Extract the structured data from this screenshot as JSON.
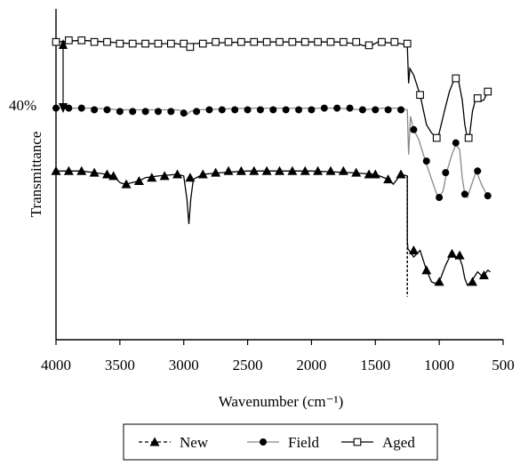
{
  "chart_data": {
    "type": "line",
    "title": "",
    "xlabel": "Wavenumber (cm⁻¹)",
    "ylabel": "Transmittance",
    "xlim": [
      4000,
      500
    ],
    "x_ticks": [
      "4000",
      "3500",
      "3000",
      "2500",
      "2000",
      "1500",
      "1000",
      "500"
    ],
    "y_ticks": [],
    "grid": false,
    "legend_position": "bottom",
    "scale_annotation": "40%",
    "series": [
      {
        "name": "New",
        "line_style": "dashed",
        "marker": "triangle",
        "color": "#000000",
        "line_points": [
          [
            4000,
            1.02
          ],
          [
            3800,
            1.02
          ],
          [
            3700,
            1.01
          ],
          [
            3600,
            1.0
          ],
          [
            3550,
            0.99
          ],
          [
            3500,
            0.95
          ],
          [
            3460,
            0.94
          ],
          [
            3400,
            0.95
          ],
          [
            3350,
            0.96
          ],
          [
            3300,
            0.98
          ],
          [
            3200,
            0.99
          ],
          [
            3050,
            1.0
          ],
          [
            3000,
            0.99
          ],
          [
            2975,
            0.85
          ],
          [
            2960,
            0.7
          ],
          [
            2945,
            0.85
          ],
          [
            2925,
            0.97
          ],
          [
            2900,
            0.98
          ],
          [
            2850,
            1.0
          ],
          [
            2700,
            1.01
          ],
          [
            2500,
            1.02
          ],
          [
            2000,
            1.02
          ],
          [
            1700,
            1.01
          ],
          [
            1500,
            1.0
          ],
          [
            1400,
            0.97
          ],
          [
            1360,
            0.94
          ],
          [
            1330,
            0.97
          ],
          [
            1300,
            1.0
          ],
          [
            1250,
            0.99
          ],
          [
            1250,
            0.6
          ],
          [
            1245,
            0.55
          ],
          [
            1200,
            0.5
          ],
          [
            1150,
            0.54
          ],
          [
            1100,
            0.42
          ],
          [
            1060,
            0.35
          ],
          [
            1030,
            0.34
          ],
          [
            990,
            0.37
          ],
          [
            950,
            0.45
          ],
          [
            900,
            0.53
          ],
          [
            870,
            0.49
          ],
          [
            850,
            0.51
          ],
          [
            820,
            0.45
          ],
          [
            800,
            0.37
          ],
          [
            780,
            0.33
          ],
          [
            750,
            0.35
          ],
          [
            700,
            0.41
          ],
          [
            660,
            0.38
          ],
          [
            620,
            0.42
          ],
          [
            600,
            0.41
          ]
        ],
        "marker_points": [
          [
            4000,
            1.02
          ],
          [
            3900,
            1.02
          ],
          [
            3800,
            1.02
          ],
          [
            3700,
            1.01
          ],
          [
            3600,
            1.0
          ],
          [
            3550,
            0.99
          ],
          [
            3450,
            0.94
          ],
          [
            3350,
            0.96
          ],
          [
            3250,
            0.98
          ],
          [
            3150,
            0.99
          ],
          [
            3050,
            1.0
          ],
          [
            2950,
            0.98
          ],
          [
            2850,
            1.0
          ],
          [
            2750,
            1.01
          ],
          [
            2650,
            1.02
          ],
          [
            2550,
            1.02
          ],
          [
            2450,
            1.02
          ],
          [
            2350,
            1.02
          ],
          [
            2250,
            1.02
          ],
          [
            2150,
            1.02
          ],
          [
            2050,
            1.02
          ],
          [
            1950,
            1.02
          ],
          [
            1850,
            1.02
          ],
          [
            1750,
            1.02
          ],
          [
            1650,
            1.01
          ],
          [
            1550,
            1.0
          ],
          [
            1500,
            1.0
          ],
          [
            1400,
            0.97
          ],
          [
            1300,
            1.0
          ],
          [
            1200,
            0.54
          ],
          [
            1100,
            0.42
          ],
          [
            1000,
            0.35
          ],
          [
            900,
            0.52
          ],
          [
            840,
            0.51
          ],
          [
            740,
            0.35
          ],
          [
            650,
            0.39
          ]
        ]
      },
      {
        "name": "Field",
        "line_style": "solid",
        "marker": "circle",
        "color": "#000000",
        "line_color": "#888888",
        "line_points": [
          [
            4000,
            1.4
          ],
          [
            3700,
            1.4
          ],
          [
            3500,
            1.39
          ],
          [
            3300,
            1.39
          ],
          [
            3050,
            1.39
          ],
          [
            3000,
            1.38
          ],
          [
            2975,
            1.36
          ],
          [
            2950,
            1.38
          ],
          [
            2900,
            1.39
          ],
          [
            2500,
            1.4
          ],
          [
            1800,
            1.4
          ],
          [
            1600,
            1.39
          ],
          [
            1450,
            1.4
          ],
          [
            1300,
            1.4
          ],
          [
            1250,
            1.39
          ],
          [
            1240,
            1.12
          ],
          [
            1225,
            1.35
          ],
          [
            1200,
            1.27
          ],
          [
            1160,
            1.21
          ],
          [
            1100,
            1.06
          ],
          [
            1060,
            0.97
          ],
          [
            1020,
            0.88
          ],
          [
            1000,
            0.86
          ],
          [
            970,
            0.9
          ],
          [
            940,
            1.02
          ],
          [
            900,
            1.12
          ],
          [
            870,
            1.18
          ],
          [
            840,
            1.15
          ],
          [
            820,
            0.98
          ],
          [
            800,
            0.88
          ],
          [
            780,
            0.86
          ],
          [
            750,
            0.93
          ],
          [
            710,
            1.02
          ],
          [
            670,
            0.94
          ],
          [
            630,
            0.88
          ],
          [
            600,
            0.87
          ]
        ],
        "marker_points": [
          [
            4000,
            1.4
          ],
          [
            3900,
            1.4
          ],
          [
            3800,
            1.4
          ],
          [
            3700,
            1.39
          ],
          [
            3600,
            1.39
          ],
          [
            3500,
            1.38
          ],
          [
            3400,
            1.38
          ],
          [
            3300,
            1.38
          ],
          [
            3200,
            1.38
          ],
          [
            3100,
            1.38
          ],
          [
            3000,
            1.37
          ],
          [
            2900,
            1.38
          ],
          [
            2800,
            1.39
          ],
          [
            2700,
            1.39
          ],
          [
            2600,
            1.39
          ],
          [
            2500,
            1.39
          ],
          [
            2400,
            1.39
          ],
          [
            2300,
            1.39
          ],
          [
            2200,
            1.39
          ],
          [
            2100,
            1.39
          ],
          [
            2000,
            1.39
          ],
          [
            1900,
            1.4
          ],
          [
            1800,
            1.4
          ],
          [
            1700,
            1.4
          ],
          [
            1600,
            1.39
          ],
          [
            1500,
            1.39
          ],
          [
            1400,
            1.39
          ],
          [
            1300,
            1.39
          ],
          [
            1200,
            1.27
          ],
          [
            1100,
            1.08
          ],
          [
            1000,
            0.86
          ],
          [
            950,
            1.01
          ],
          [
            870,
            1.19
          ],
          [
            800,
            0.88
          ],
          [
            700,
            1.02
          ],
          [
            620,
            0.87
          ]
        ]
      },
      {
        "name": "Aged",
        "line_style": "solid",
        "marker": "square-open",
        "color": "#000000",
        "line_points": [
          [
            4000,
            1.8
          ],
          [
            3800,
            1.81
          ],
          [
            3600,
            1.8
          ],
          [
            3400,
            1.79
          ],
          [
            3050,
            1.79
          ],
          [
            3000,
            1.78
          ],
          [
            2975,
            1.77
          ],
          [
            2950,
            1.79
          ],
          [
            2500,
            1.8
          ],
          [
            1800,
            1.8
          ],
          [
            1650,
            1.79
          ],
          [
            1550,
            1.77
          ],
          [
            1480,
            1.8
          ],
          [
            1300,
            1.79
          ],
          [
            1250,
            1.78
          ],
          [
            1240,
            1.55
          ],
          [
            1230,
            1.64
          ],
          [
            1200,
            1.6
          ],
          [
            1150,
            1.48
          ],
          [
            1100,
            1.3
          ],
          [
            1060,
            1.25
          ],
          [
            1020,
            1.22
          ],
          [
            1000,
            1.25
          ],
          [
            960,
            1.38
          ],
          [
            920,
            1.5
          ],
          [
            880,
            1.58
          ],
          [
            850,
            1.57
          ],
          [
            820,
            1.45
          ],
          [
            800,
            1.3
          ],
          [
            780,
            1.22
          ],
          [
            760,
            1.25
          ],
          [
            740,
            1.38
          ],
          [
            710,
            1.47
          ],
          [
            680,
            1.44
          ],
          [
            650,
            1.45
          ],
          [
            620,
            1.5
          ],
          [
            600,
            1.48
          ]
        ],
        "marker_points": [
          [
            4000,
            1.8
          ],
          [
            3900,
            1.81
          ],
          [
            3800,
            1.81
          ],
          [
            3700,
            1.8
          ],
          [
            3600,
            1.8
          ],
          [
            3500,
            1.79
          ],
          [
            3400,
            1.79
          ],
          [
            3300,
            1.79
          ],
          [
            3200,
            1.79
          ],
          [
            3100,
            1.79
          ],
          [
            3000,
            1.79
          ],
          [
            2950,
            1.77
          ],
          [
            2850,
            1.79
          ],
          [
            2750,
            1.8
          ],
          [
            2650,
            1.8
          ],
          [
            2550,
            1.8
          ],
          [
            2450,
            1.8
          ],
          [
            2350,
            1.8
          ],
          [
            2250,
            1.8
          ],
          [
            2150,
            1.8
          ],
          [
            2050,
            1.8
          ],
          [
            1950,
            1.8
          ],
          [
            1850,
            1.8
          ],
          [
            1750,
            1.8
          ],
          [
            1650,
            1.8
          ],
          [
            1550,
            1.78
          ],
          [
            1450,
            1.8
          ],
          [
            1350,
            1.8
          ],
          [
            1250,
            1.79
          ],
          [
            1150,
            1.48
          ],
          [
            1020,
            1.22
          ],
          [
            870,
            1.58
          ],
          [
            770,
            1.22
          ],
          [
            700,
            1.46
          ],
          [
            620,
            1.5
          ]
        ]
      }
    ]
  }
}
